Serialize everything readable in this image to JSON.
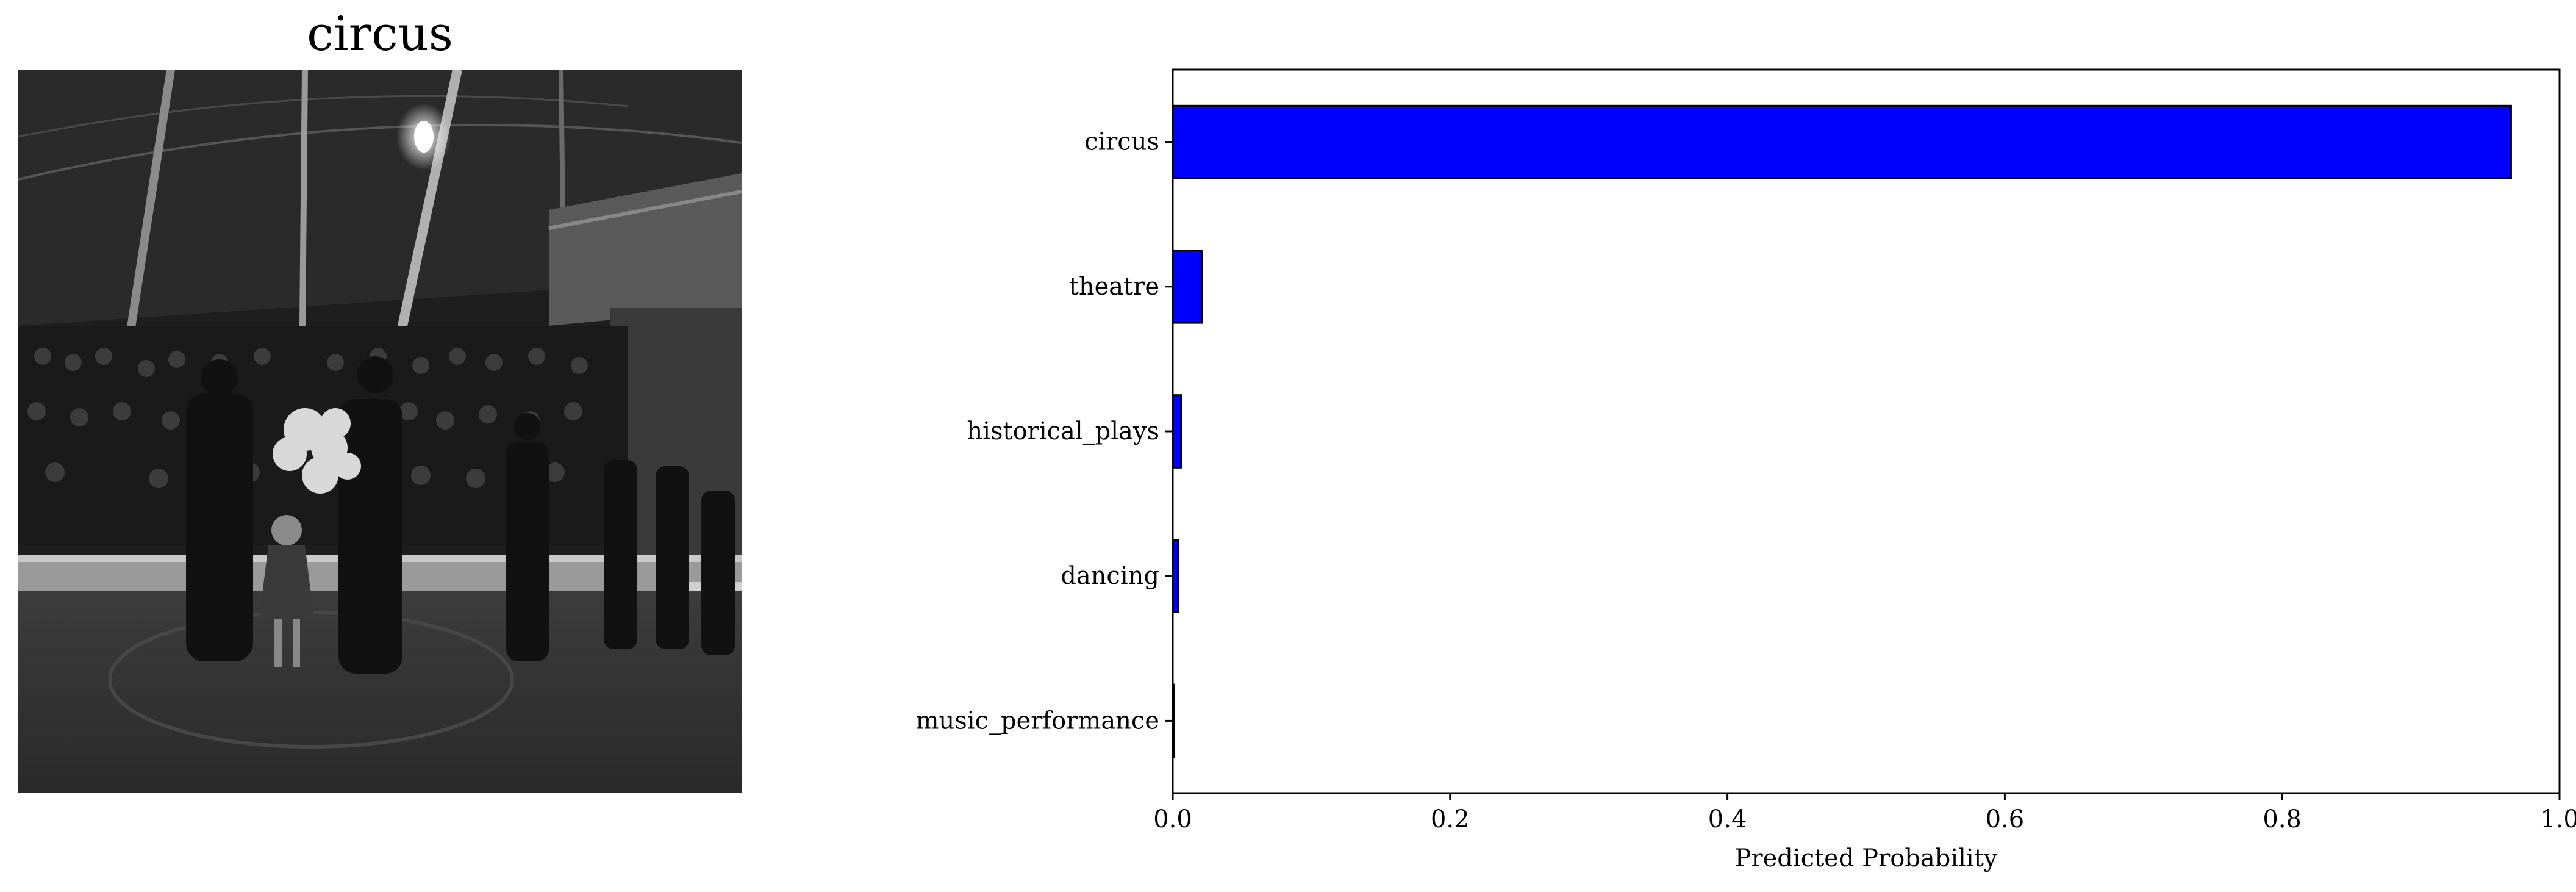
{
  "image_panel": {
    "title": "circus",
    "photo_description_icon": "circus-ring-photo"
  },
  "chart_data": {
    "type": "bar",
    "orientation": "horizontal",
    "title": "",
    "categories": [
      "circus",
      "theatre",
      "historical_plays",
      "dancing",
      "music_performance"
    ],
    "values": [
      0.965,
      0.021,
      0.006,
      0.004,
      0.001
    ],
    "xlabel": "Predicted Probability",
    "ylabel": "",
    "xlim": [
      0,
      1.0
    ],
    "xticks": [
      "0.0",
      "0.2",
      "0.4",
      "0.6",
      "0.8",
      "1.0"
    ],
    "grid": false,
    "bar_color": "#0000ff",
    "edge_color": "#000000"
  }
}
